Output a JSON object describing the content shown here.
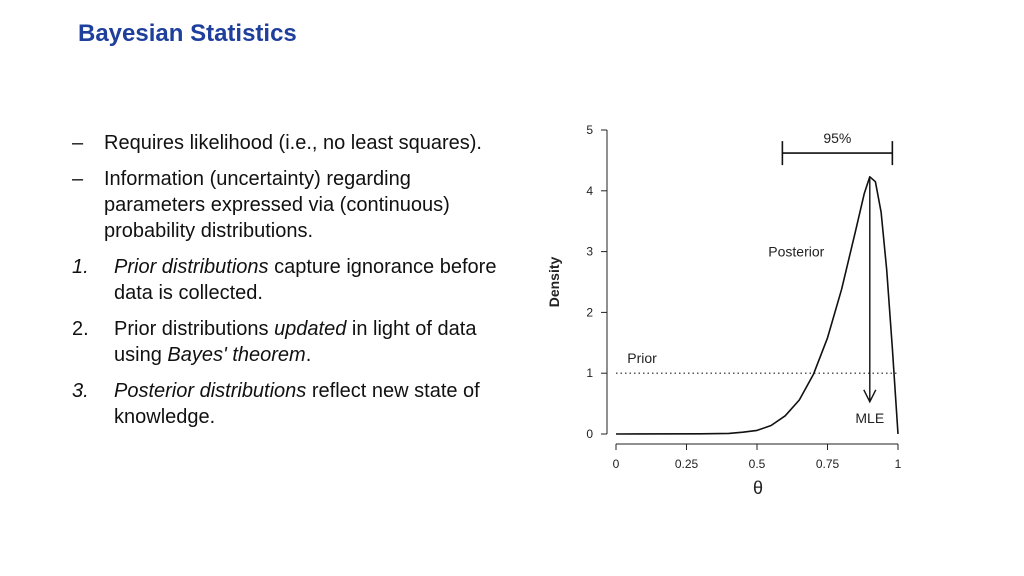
{
  "slide": {
    "title": "Bayesian Statistics"
  },
  "bullets": [
    {
      "marker": "–",
      "marker_italic": false,
      "segments": [
        {
          "text": "Requires likelihood (i.e., no least squares).",
          "italic": false
        }
      ]
    },
    {
      "marker": "–",
      "marker_italic": false,
      "segments": [
        {
          "text": "Information (uncertainty) regarding parameters expressed via (continuous) probability distributions.",
          "italic": false
        }
      ]
    },
    {
      "marker": "1.",
      "marker_italic": true,
      "segments": [
        {
          "text": "Prior distributions",
          "italic": true
        },
        {
          "text": " capture ignorance before data is collected.",
          "italic": false
        }
      ]
    },
    {
      "marker": "2.",
      "marker_italic": false,
      "segments": [
        {
          "text": "Prior distributions ",
          "italic": false
        },
        {
          "text": "updated",
          "italic": true
        },
        {
          "text": " in light of data using ",
          "italic": false
        },
        {
          "text": "Bayes' theorem",
          "italic": true
        },
        {
          "text": ".",
          "italic": false
        }
      ]
    },
    {
      "marker": "3.",
      "marker_italic": true,
      "segments": [
        {
          "text": "Posterior distributions",
          "italic": true
        },
        {
          "text": " reflect new state of knowledge.",
          "italic": false
        }
      ]
    }
  ],
  "chart_data": {
    "type": "line",
    "xlabel": "θ",
    "ylabel": "Density",
    "xlim": [
      0,
      1
    ],
    "ylim": [
      0,
      5
    ],
    "x_ticks": [
      "0",
      "0.25",
      "0.5",
      "0.75",
      "1"
    ],
    "y_ticks": [
      "0",
      "1",
      "2",
      "3",
      "4",
      "5"
    ],
    "series": [
      {
        "name": "Posterior",
        "style": "solid",
        "x": [
          0,
          0.3,
          0.4,
          0.45,
          0.5,
          0.55,
          0.6,
          0.65,
          0.7,
          0.75,
          0.8,
          0.85,
          0.88,
          0.9,
          0.92,
          0.94,
          0.96,
          0.98,
          1.0
        ],
        "y": [
          0,
          0.003,
          0.01,
          0.03,
          0.06,
          0.14,
          0.3,
          0.56,
          0.98,
          1.58,
          2.38,
          3.35,
          3.95,
          4.23,
          4.15,
          3.65,
          2.7,
          1.4,
          0.0
        ]
      },
      {
        "name": "Prior",
        "style": "dotted",
        "x": [
          0,
          1
        ],
        "y": [
          1,
          1
        ]
      }
    ],
    "annotations": {
      "interval_label": "95%",
      "interval": [
        0.59,
        0.98
      ],
      "mle_label": "MLE",
      "mle_x": 0.9
    },
    "grid": false
  }
}
